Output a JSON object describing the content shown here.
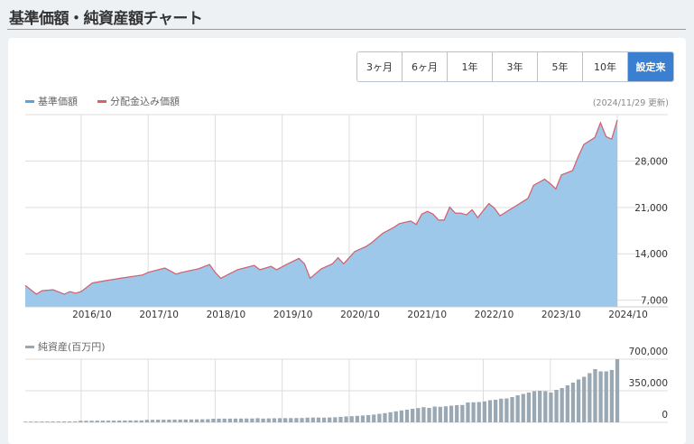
{
  "title": "基準価額・純資産額チャート",
  "period_buttons": [
    "3ヶ月",
    "6ヶ月",
    "1年",
    "3年",
    "5年",
    "10年",
    "設定来"
  ],
  "selected_period": "設定来",
  "colors": {
    "accent": "#3a7fd0",
    "nav_line": "#5ba3dc",
    "nav_fill": "#9dc8ea",
    "dividend_line": "#d9606c",
    "bar": "#9aa8b4"
  },
  "legend": {
    "nav": "基準価額",
    "dividend": "分配金込み価額",
    "net_assets": "純資産(百万円)"
  },
  "updated": "(2024/11/29 更新)",
  "chart_data": [
    {
      "type": "area",
      "series": [
        {
          "name": "基準価額"
        },
        {
          "name": "分配金込み価額"
        }
      ],
      "x_ticks": [
        "2016/10",
        "2017/10",
        "2018/10",
        "2019/10",
        "2020/10",
        "2021/10",
        "2022/10",
        "2023/10",
        "2024/10"
      ],
      "y_ticks": [
        "7,000",
        "14,000",
        "21,000",
        "28,000"
      ],
      "y_tick_values": [
        7000,
        14000,
        21000,
        28000
      ],
      "ylim": [
        6000,
        35000
      ],
      "xlim": [
        "2015/12",
        "2024/10"
      ],
      "grid": true,
      "points": [
        [
          "2015/12",
          9230
        ],
        [
          "2016/02",
          7900
        ],
        [
          "2016/03",
          8440
        ],
        [
          "2016/05",
          8580
        ],
        [
          "2016/07",
          7900
        ],
        [
          "2016/08",
          8300
        ],
        [
          "2016/09",
          8050
        ],
        [
          "2016/10",
          8300
        ],
        [
          "2016/12",
          9600
        ],
        [
          "2017/02",
          9900
        ],
        [
          "2017/05",
          10300
        ],
        [
          "2017/09",
          10800
        ],
        [
          "2017/10",
          11200
        ],
        [
          "2018/01",
          11860
        ],
        [
          "2018/03",
          10940
        ],
        [
          "2018/04",
          11200
        ],
        [
          "2018/07",
          11730
        ],
        [
          "2018/09",
          12380
        ],
        [
          "2018/10",
          11200
        ],
        [
          "2018/11",
          10300
        ],
        [
          "2019/02",
          11600
        ],
        [
          "2019/05",
          12250
        ],
        [
          "2019/06",
          11600
        ],
        [
          "2019/08",
          12100
        ],
        [
          "2019/09",
          11600
        ],
        [
          "2019/11",
          12500
        ],
        [
          "2020/01",
          13300
        ],
        [
          "2020/02",
          12500
        ],
        [
          "2020/03",
          10300
        ],
        [
          "2020/05",
          11730
        ],
        [
          "2020/07",
          12500
        ],
        [
          "2020/08",
          13400
        ],
        [
          "2020/09",
          12500
        ],
        [
          "2020/11",
          14350
        ],
        [
          "2021/01",
          15100
        ],
        [
          "2021/02",
          15660
        ],
        [
          "2021/04",
          17100
        ],
        [
          "2021/06",
          18000
        ],
        [
          "2021/07",
          18550
        ],
        [
          "2021/09",
          18950
        ],
        [
          "2021/10",
          18420
        ],
        [
          "2021/11",
          20000
        ],
        [
          "2021/12",
          20400
        ],
        [
          "2022/01",
          20000
        ],
        [
          "2022/02",
          19080
        ],
        [
          "2022/03",
          19080
        ],
        [
          "2022/04",
          21050
        ],
        [
          "2022/05",
          20130
        ],
        [
          "2022/06",
          20130
        ],
        [
          "2022/07",
          19870
        ],
        [
          "2022/08",
          20650
        ],
        [
          "2022/09",
          19470
        ],
        [
          "2022/11",
          21570
        ],
        [
          "2022/12",
          20900
        ],
        [
          "2023/01",
          19740
        ],
        [
          "2023/03",
          20790
        ],
        [
          "2023/04",
          21300
        ],
        [
          "2023/06",
          22360
        ],
        [
          "2023/07",
          24330
        ],
        [
          "2023/09",
          25250
        ],
        [
          "2023/10",
          24590
        ],
        [
          "2023/11",
          23800
        ],
        [
          "2023/12",
          25900
        ],
        [
          "2024/02",
          26560
        ],
        [
          "2024/03",
          28660
        ],
        [
          "2024/04",
          30500
        ],
        [
          "2024/06",
          31550
        ],
        [
          "2024/07",
          33780
        ],
        [
          "2024/08",
          31680
        ],
        [
          "2024/09",
          31290
        ],
        [
          "2024/10",
          34180
        ]
      ]
    },
    {
      "type": "bar",
      "title": "純資産(百万円)",
      "y_ticks": [
        "0",
        "350,000",
        "700,000"
      ],
      "y_tick_values": [
        0,
        350000,
        700000
      ],
      "ylim": [
        0,
        700000
      ],
      "xlim": [
        "2015/12",
        "2024/10"
      ],
      "grid": true,
      "values": [
        8000,
        8000,
        8500,
        9000,
        9000,
        9500,
        9500,
        10000,
        10000,
        10500,
        17000,
        17500,
        18000,
        18500,
        19000,
        19000,
        19500,
        20000,
        20500,
        21000,
        21000,
        21500,
        27000,
        28000,
        29000,
        29500,
        30000,
        30500,
        31000,
        31500,
        32000,
        33000,
        34000,
        34500,
        40000,
        41000,
        41000,
        41500,
        42000,
        42000,
        42500,
        43000,
        46000,
        42000,
        44000,
        45000,
        46000,
        46500,
        47000,
        47500,
        48000,
        52000,
        53000,
        53000,
        52000,
        54000,
        56000,
        60000,
        65000,
        68000,
        72000,
        76000,
        80000,
        86000,
        94000,
        102000,
        112000,
        122000,
        132000,
        140000,
        150000,
        158000,
        168000,
        160000,
        175000,
        172000,
        178000,
        185000,
        190000,
        192000,
        220000,
        222000,
        225000,
        232000,
        245000,
        250000,
        262000,
        265000,
        280000,
        300000,
        315000,
        330000,
        345000,
        350000,
        345000,
        330000,
        360000,
        380000,
        410000,
        440000,
        475000,
        505000,
        545000,
        590000,
        565000,
        565000,
        580000,
        700000
      ]
    }
  ]
}
